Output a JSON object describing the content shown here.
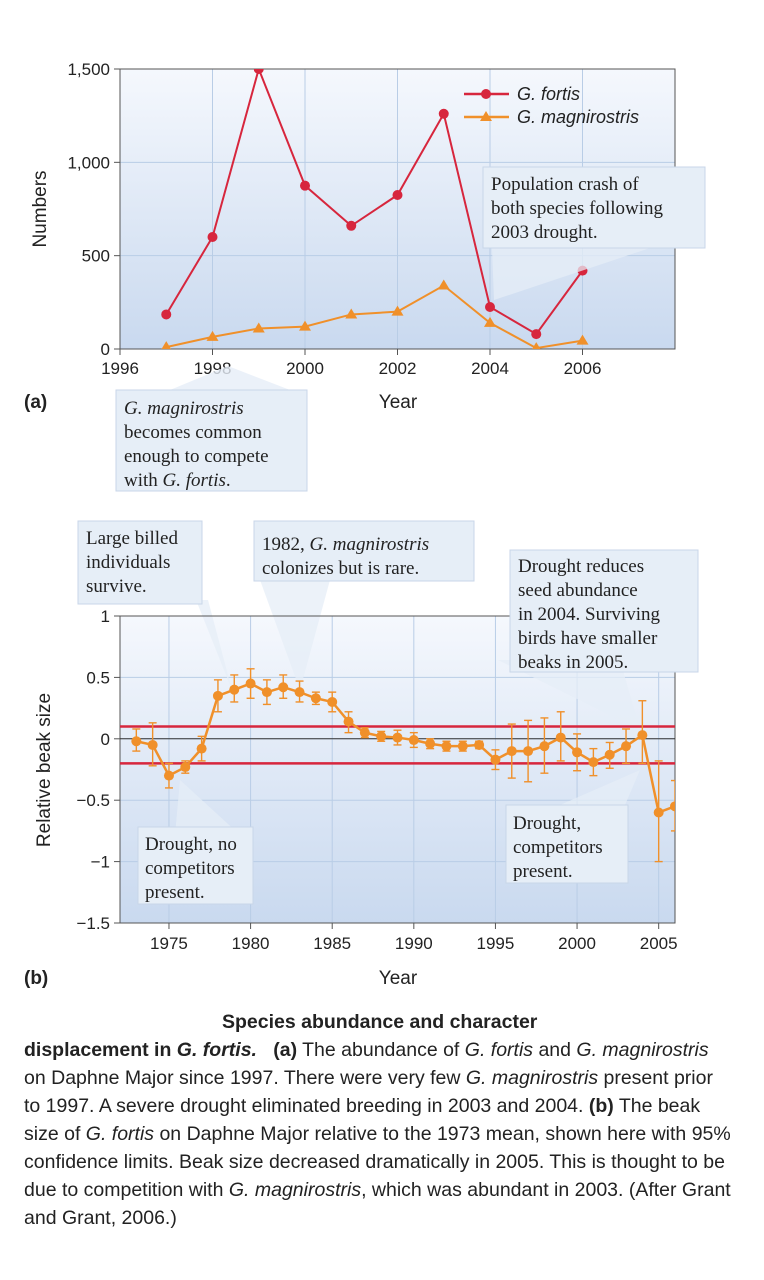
{
  "figure": {
    "panel_a": "(a)",
    "panel_b": "(b)",
    "callouts": {
      "crash": [
        "Population crash of",
        "both species following",
        "2003 drought."
      ],
      "common": [
        [
          {
            "t": "G. magnirostris",
            "i": true
          }
        ],
        [
          {
            "t": "becomes common",
            "i": false
          }
        ],
        [
          {
            "t": "enough to compete",
            "i": false
          }
        ],
        [
          {
            "t": "with ",
            "i": false
          },
          {
            "t": "G. fortis",
            "i": true
          },
          {
            "t": ".",
            "i": false
          }
        ]
      ],
      "large": [
        "Large billed",
        "individuals",
        "survive."
      ],
      "colonize": [
        [
          {
            "t": "1982, ",
            "i": false
          },
          {
            "t": "G. magnirostris",
            "i": true
          }
        ],
        [
          {
            "t": "colonizes but is rare.",
            "i": false
          }
        ]
      ],
      "drought_reduces": [
        "Drought reduces",
        "seed abundance",
        "in 2004. Surviving",
        "birds have smaller",
        "beaks in 2005."
      ],
      "drought_no": [
        "Drought, no",
        "competitors",
        "present."
      ],
      "drought_comp": [
        "Drought,",
        "competitors",
        "present."
      ]
    }
  },
  "caption": {
    "title_line": "Species abundance and character",
    "title_cont": "displacement in ",
    "title_species": "G. fortis.",
    "a_label": "(a)",
    "a_text_1": " The abundance of ",
    "a_sp1": "G. fortis",
    "a_text_2": " and ",
    "a_sp2": "G. magnirostris",
    "a_text_3": " on Daphne Major since 1997. There were very few ",
    "a_sp3": "G. magnirostris",
    "a_text_4": " present prior to 1997. A severe drought eliminated breeding in 2003 and 2004. ",
    "b_label": "(b)",
    "b_text_1": " The beak size of ",
    "b_sp1": "G. fortis",
    "b_text_2": " on Daphne Major relative to the 1973 mean, shown here with 95% confidence limits. Beak size decreased dramatically in 2005. This is thought to be due to competition with ",
    "b_sp2": "G. magnirostris",
    "b_text_3": ", which was abundant in 2003. (After Grant and Grant, 2006.)"
  },
  "colors": {
    "fortis": "#d7263d",
    "magnirostris": "#f0902a",
    "reference_line": "#d7263d",
    "plot_bg_top": "#f5f8fd",
    "plot_bg_bottom": "#c9d9ef",
    "grid": "#b9cde6",
    "callout_bg": "#e6eef7"
  },
  "chart_data": [
    {
      "type": "line",
      "xlabel": "Year",
      "ylabel": "Numbers",
      "xlim": [
        1996,
        2008
      ],
      "ylim": [
        0,
        1500
      ],
      "xticks": [
        "1996",
        "1998",
        "2000",
        "2002",
        "2004",
        "2006"
      ],
      "yticks": [
        "0",
        "500",
        "1,000",
        "1,500"
      ],
      "grid": true,
      "legend": "top-right",
      "series": [
        {
          "name": "G. fortis",
          "marker": "circle",
          "x": [
            1997,
            1998,
            1999,
            2000,
            2001,
            2002,
            2003,
            2004,
            2005,
            2006
          ],
          "values": [
            185,
            600,
            1500,
            875,
            660,
            825,
            1260,
            225,
            80,
            420
          ]
        },
        {
          "name": "G. magnirostris",
          "marker": "triangle",
          "x": [
            1997,
            1998,
            1999,
            2000,
            2001,
            2002,
            2003,
            2004,
            2005,
            2006
          ],
          "values": [
            10,
            65,
            110,
            120,
            185,
            200,
            340,
            140,
            5,
            45
          ]
        }
      ]
    },
    {
      "type": "line",
      "xlabel": "Year",
      "ylabel": "Relative beak size",
      "xlim": [
        1972,
        2006
      ],
      "ylim": [
        -1.5,
        1
      ],
      "xticks": [
        "1975",
        "1980",
        "1985",
        "1990",
        "1995",
        "2000",
        "2005"
      ],
      "yticks": [
        "-1.5",
        "-1",
        "-0.5",
        "0",
        "0.5",
        "1"
      ],
      "grid": true,
      "reference_lines": [
        0.1,
        -0.2
      ],
      "series": [
        {
          "marker": "circle",
          "error_bars": "95% confidence limits",
          "x": [
            1973,
            1974,
            1975,
            1976,
            1977,
            1978,
            1979,
            1980,
            1981,
            1982,
            1983,
            1984,
            1985,
            1986,
            1987,
            1988,
            1989,
            1990,
            1991,
            1992,
            1993,
            1994,
            1995,
            1996,
            1997,
            1998,
            1999,
            2000,
            2001,
            2002,
            2003,
            2004,
            2005,
            2006
          ],
          "values": [
            -0.02,
            -0.05,
            -0.3,
            -0.23,
            -0.08,
            0.35,
            0.4,
            0.45,
            0.38,
            0.42,
            0.38,
            0.33,
            0.3,
            0.14,
            0.05,
            0.02,
            0.01,
            -0.01,
            -0.04,
            -0.06,
            -0.06,
            -0.05,
            -0.17,
            -0.1,
            -0.1,
            -0.06,
            0.01,
            -0.11,
            -0.19,
            -0.13,
            -0.06,
            0.03,
            -0.6,
            -0.55
          ],
          "lower": [
            -0.1,
            -0.22,
            -0.4,
            -0.28,
            -0.18,
            0.22,
            0.3,
            0.33,
            0.28,
            0.33,
            0.3,
            0.28,
            0.22,
            0.05,
            0.01,
            -0.02,
            -0.05,
            -0.07,
            -0.08,
            -0.1,
            -0.1,
            -0.08,
            -0.25,
            -0.32,
            -0.35,
            -0.28,
            -0.18,
            -0.26,
            -0.3,
            -0.24,
            -0.2,
            -0.2,
            -1.0,
            -0.75
          ],
          "upper": [
            0.08,
            0.13,
            -0.2,
            -0.18,
            0.02,
            0.48,
            0.52,
            0.57,
            0.48,
            0.52,
            0.47,
            0.38,
            0.38,
            0.22,
            0.09,
            0.06,
            0.07,
            0.05,
            0.0,
            -0.02,
            -0.02,
            -0.02,
            -0.09,
            0.12,
            0.15,
            0.17,
            0.22,
            0.04,
            -0.08,
            -0.03,
            0.08,
            0.31,
            -0.18,
            -0.34
          ]
        }
      ]
    }
  ]
}
